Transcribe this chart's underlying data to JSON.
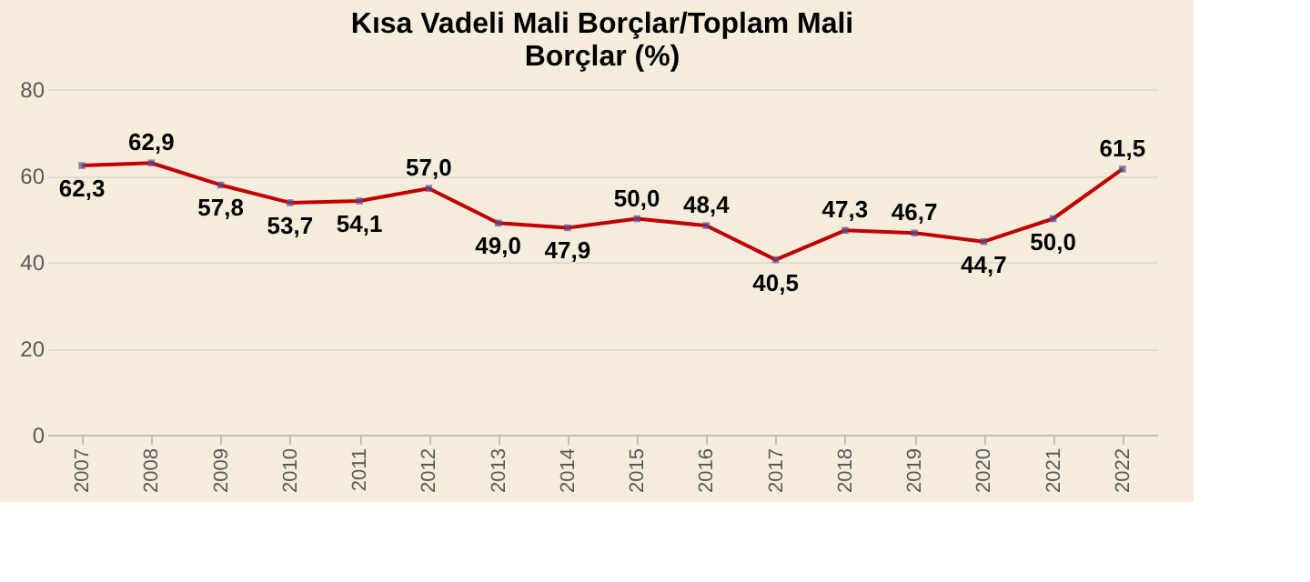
{
  "chart_data": {
    "type": "line",
    "title": [
      "Kısa Vadeli Mali Borçlar/Toplam Mali",
      "Borçlar (%)"
    ],
    "categories": [
      "2007",
      "2008",
      "2009",
      "2010",
      "2011",
      "2012",
      "2013",
      "2014",
      "2015",
      "2016",
      "2017",
      "2018",
      "2019",
      "2020",
      "2021",
      "2022"
    ],
    "series": [
      {
        "color": "#c00000",
        "values": [
          62.3,
          62.9,
          57.8,
          53.7,
          54.1,
          57.0,
          49.0,
          47.9,
          50.0,
          48.4,
          40.5,
          47.3,
          46.7,
          44.7,
          50.0,
          61.5
        ],
        "value_labels": [
          "62,3",
          "62,9",
          "57,8",
          "53,7",
          "54,1",
          "57,0",
          "49,0",
          "47,9",
          "50,0",
          "48,4",
          "40,5",
          "47,3",
          "46,7",
          "44,7",
          "50,0",
          "61,5"
        ]
      }
    ],
    "ylim": [
      0,
      80
    ],
    "yticks": [
      0,
      20,
      40,
      60,
      80
    ],
    "grid": "y",
    "marker": "square",
    "line_style": "solid"
  }
}
